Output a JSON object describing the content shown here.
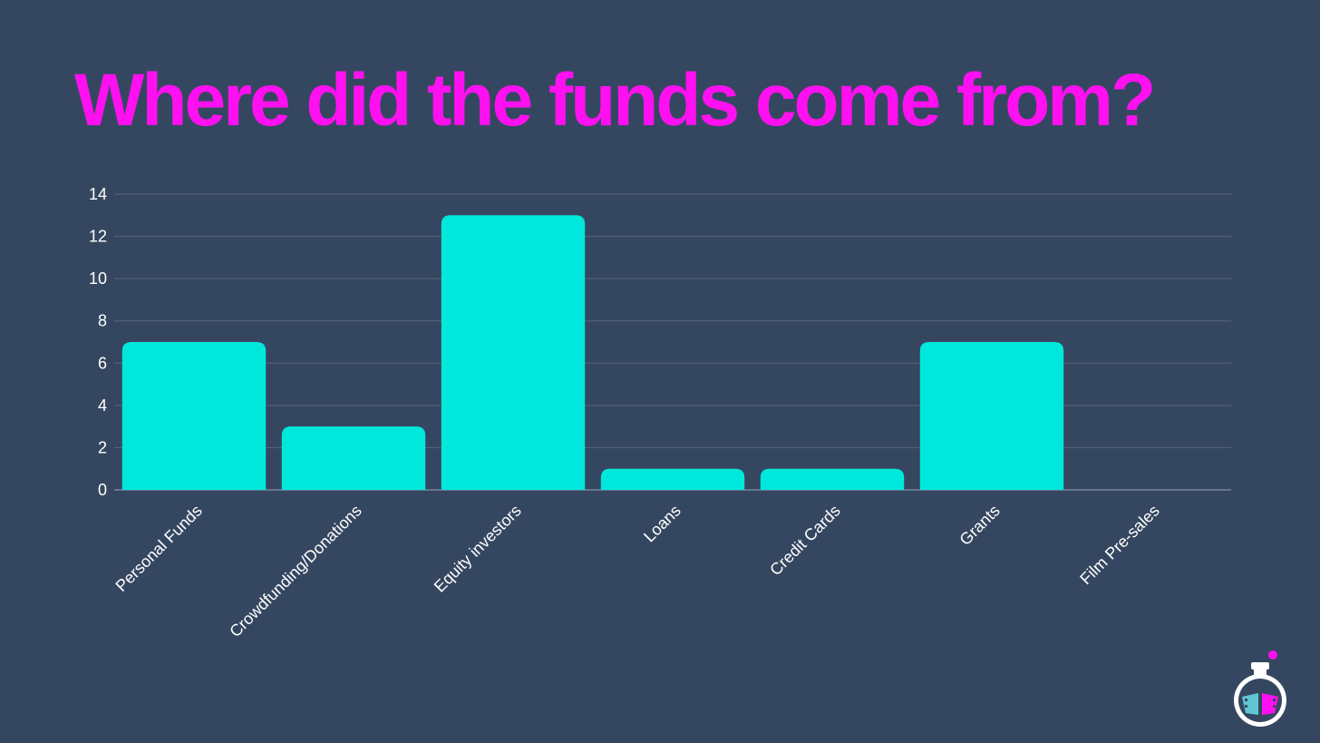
{
  "slide": {
    "title": "Where did the funds come from?"
  },
  "colors": {
    "background": "#354760",
    "title": "#ff10f0",
    "bar": "#00e8dc",
    "grid": "#56667d"
  },
  "chart_data": {
    "type": "bar",
    "categories": [
      "Personal Funds",
      "Crowdfunding/Donations",
      "Equity investors",
      "Loans",
      "Credit Cards",
      "Grants",
      "Film Pre-sales"
    ],
    "values": [
      7,
      3,
      13,
      1,
      1,
      7,
      0
    ],
    "yticks": [
      "0",
      "2",
      "4",
      "6",
      "8",
      "10",
      "12",
      "14"
    ],
    "ylim": [
      0,
      14
    ],
    "grid": true,
    "legend": "none",
    "xlabel": "",
    "ylabel": ""
  },
  "logo": {
    "icon": "film-flask-icon"
  }
}
